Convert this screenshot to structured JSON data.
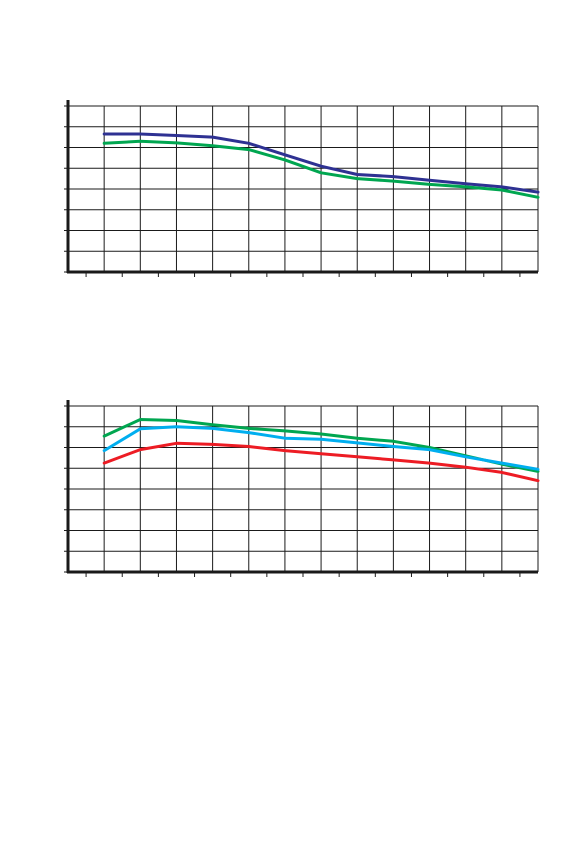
{
  "chart_data": [
    {
      "type": "line",
      "grid": true,
      "xlim": [
        0,
        13
      ],
      "ylim": [
        0,
        8
      ],
      "x": [
        1,
        2,
        3,
        4,
        5,
        6,
        7,
        8,
        9,
        10,
        11,
        12,
        13
      ],
      "series": [
        {
          "color": "#2e3192",
          "values": [
            6.65,
            6.65,
            6.58,
            6.5,
            6.2,
            5.65,
            5.1,
            4.7,
            4.6,
            4.42,
            4.25,
            4.1,
            3.85
          ]
        },
        {
          "color": "#00a650",
          "values": [
            6.2,
            6.3,
            6.22,
            6.08,
            5.9,
            5.4,
            4.78,
            4.5,
            4.38,
            4.22,
            4.1,
            3.95,
            3.6
          ]
        }
      ]
    },
    {
      "type": "line",
      "grid": true,
      "xlim": [
        0,
        13
      ],
      "ylim": [
        0,
        8
      ],
      "x": [
        1,
        2,
        3,
        4,
        5,
        6,
        7,
        8,
        9,
        10,
        11,
        12,
        13
      ],
      "series": [
        {
          "color": "#00a650",
          "values": [
            6.55,
            7.35,
            7.3,
            7.1,
            6.92,
            6.8,
            6.65,
            6.45,
            6.3,
            6.0,
            5.6,
            5.2,
            4.85
          ]
        },
        {
          "color": "#00aeef",
          "values": [
            5.85,
            6.9,
            7.0,
            6.92,
            6.72,
            6.45,
            6.4,
            6.22,
            6.05,
            5.9,
            5.55,
            5.25,
            4.95
          ]
        },
        {
          "color": "#ed1c24",
          "values": [
            5.25,
            5.9,
            6.2,
            6.15,
            6.05,
            5.85,
            5.7,
            5.55,
            5.4,
            5.25,
            5.05,
            4.8,
            4.4
          ]
        }
      ]
    }
  ]
}
